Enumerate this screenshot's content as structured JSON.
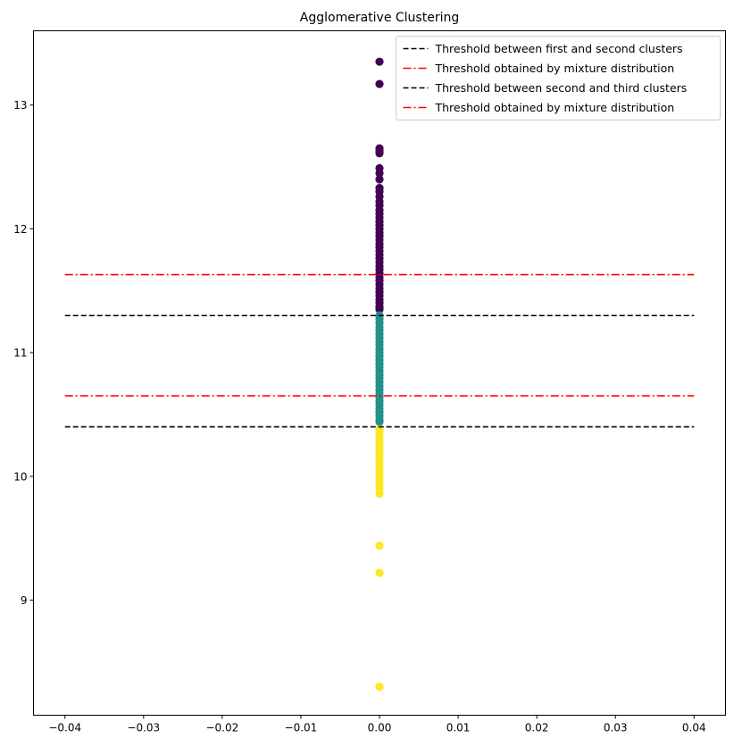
{
  "chart_data": {
    "type": "scatter",
    "title": "Agglomerative Clustering",
    "xlabel": "",
    "ylabel": "",
    "xlim": [
      -0.044,
      0.044
    ],
    "ylim": [
      8.07,
      13.6
    ],
    "xticks": [
      -0.04,
      -0.03,
      -0.02,
      -0.01,
      0.0,
      0.01,
      0.02,
      0.03,
      0.04
    ],
    "xtick_labels": [
      "−0.04",
      "−0.03",
      "−0.02",
      "−0.01",
      "0.00",
      "0.01",
      "0.02",
      "0.03",
      "0.04"
    ],
    "yticks": [
      9,
      10,
      11,
      12,
      13
    ],
    "ytick_labels": [
      "9",
      "10",
      "11",
      "12",
      "13"
    ],
    "grid": false,
    "legend_position": "top-right",
    "colors": {
      "cluster_top": "#440154",
      "cluster_middle": "#21918c",
      "cluster_bottom": "#fde725",
      "threshold_cluster": "#000000",
      "threshold_mixture": "#ff0000"
    },
    "clusters": [
      {
        "color": "#440154",
        "points": [
          [
            0,
            13.35
          ],
          [
            0,
            13.17
          ],
          [
            0,
            12.65
          ],
          [
            0,
            12.63
          ],
          [
            0,
            12.61
          ],
          [
            0,
            12.49
          ],
          [
            0,
            12.45
          ],
          [
            0,
            12.4
          ],
          [
            0,
            12.33
          ],
          [
            0,
            12.3
          ],
          [
            0,
            12.26
          ],
          [
            0,
            12.22
          ],
          [
            0,
            12.19
          ],
          [
            0,
            12.15
          ],
          [
            0,
            12.12
          ],
          [
            0,
            12.09
          ],
          [
            0,
            12.06
          ],
          [
            0,
            12.03
          ],
          [
            0,
            12.0
          ],
          [
            0,
            11.97
          ],
          [
            0,
            11.94
          ],
          [
            0,
            11.91
          ],
          [
            0,
            11.88
          ],
          [
            0,
            11.85
          ],
          [
            0,
            11.82
          ],
          [
            0,
            11.79
          ],
          [
            0,
            11.76
          ],
          [
            0,
            11.73
          ],
          [
            0,
            11.7
          ],
          [
            0,
            11.67
          ],
          [
            0,
            11.64
          ],
          [
            0,
            11.61
          ],
          [
            0,
            11.58
          ],
          [
            0,
            11.55
          ],
          [
            0,
            11.52
          ],
          [
            0,
            11.49
          ],
          [
            0,
            11.46
          ],
          [
            0,
            11.43
          ],
          [
            0,
            11.4
          ],
          [
            0,
            11.37
          ],
          [
            0,
            11.35
          ]
        ]
      },
      {
        "color": "#21918c",
        "points": [
          [
            0,
            11.3
          ],
          [
            0,
            11.27
          ],
          [
            0,
            11.24
          ],
          [
            0,
            11.21
          ],
          [
            0,
            11.18
          ],
          [
            0,
            11.15
          ],
          [
            0,
            11.12
          ],
          [
            0,
            11.09
          ],
          [
            0,
            11.06
          ],
          [
            0,
            11.03
          ],
          [
            0,
            11.0
          ],
          [
            0,
            10.97
          ],
          [
            0,
            10.94
          ],
          [
            0,
            10.91
          ],
          [
            0,
            10.88
          ],
          [
            0,
            10.85
          ],
          [
            0,
            10.82
          ],
          [
            0,
            10.79
          ],
          [
            0,
            10.76
          ],
          [
            0,
            10.73
          ],
          [
            0,
            10.7
          ],
          [
            0,
            10.67
          ],
          [
            0,
            10.64
          ],
          [
            0,
            10.61
          ],
          [
            0,
            10.58
          ],
          [
            0,
            10.55
          ],
          [
            0,
            10.52
          ],
          [
            0,
            10.49
          ],
          [
            0,
            10.46
          ],
          [
            0,
            10.44
          ]
        ]
      },
      {
        "color": "#fde725",
        "points": [
          [
            0,
            10.38
          ],
          [
            0,
            10.35
          ],
          [
            0,
            10.32
          ],
          [
            0,
            10.29
          ],
          [
            0,
            10.26
          ],
          [
            0,
            10.23
          ],
          [
            0,
            10.2
          ],
          [
            0,
            10.17
          ],
          [
            0,
            10.14
          ],
          [
            0,
            10.11
          ],
          [
            0,
            10.08
          ],
          [
            0,
            10.05
          ],
          [
            0,
            10.02
          ],
          [
            0,
            9.99
          ],
          [
            0,
            9.96
          ],
          [
            0,
            9.93
          ],
          [
            0,
            9.9
          ],
          [
            0,
            9.86
          ],
          [
            0,
            9.44
          ],
          [
            0,
            9.22
          ],
          [
            0,
            8.3
          ]
        ]
      }
    ],
    "lines": [
      {
        "label": "Threshold between first and second clusters",
        "y": 11.3,
        "x": [
          -0.04,
          0.04
        ],
        "color": "#000000",
        "style": "dashed"
      },
      {
        "label": "Threshold obtained by mixture distribution",
        "y": 11.63,
        "x": [
          -0.04,
          0.04
        ],
        "color": "#ff0000",
        "style": "dashdot"
      },
      {
        "label": "Threshold between second and third clusters",
        "y": 10.4,
        "x": [
          -0.04,
          0.04
        ],
        "color": "#000000",
        "style": "dashed"
      },
      {
        "label": "Threshold obtained by mixture distribution",
        "y": 10.65,
        "x": [
          -0.04,
          0.04
        ],
        "color": "#ff0000",
        "style": "dashdot"
      }
    ]
  }
}
